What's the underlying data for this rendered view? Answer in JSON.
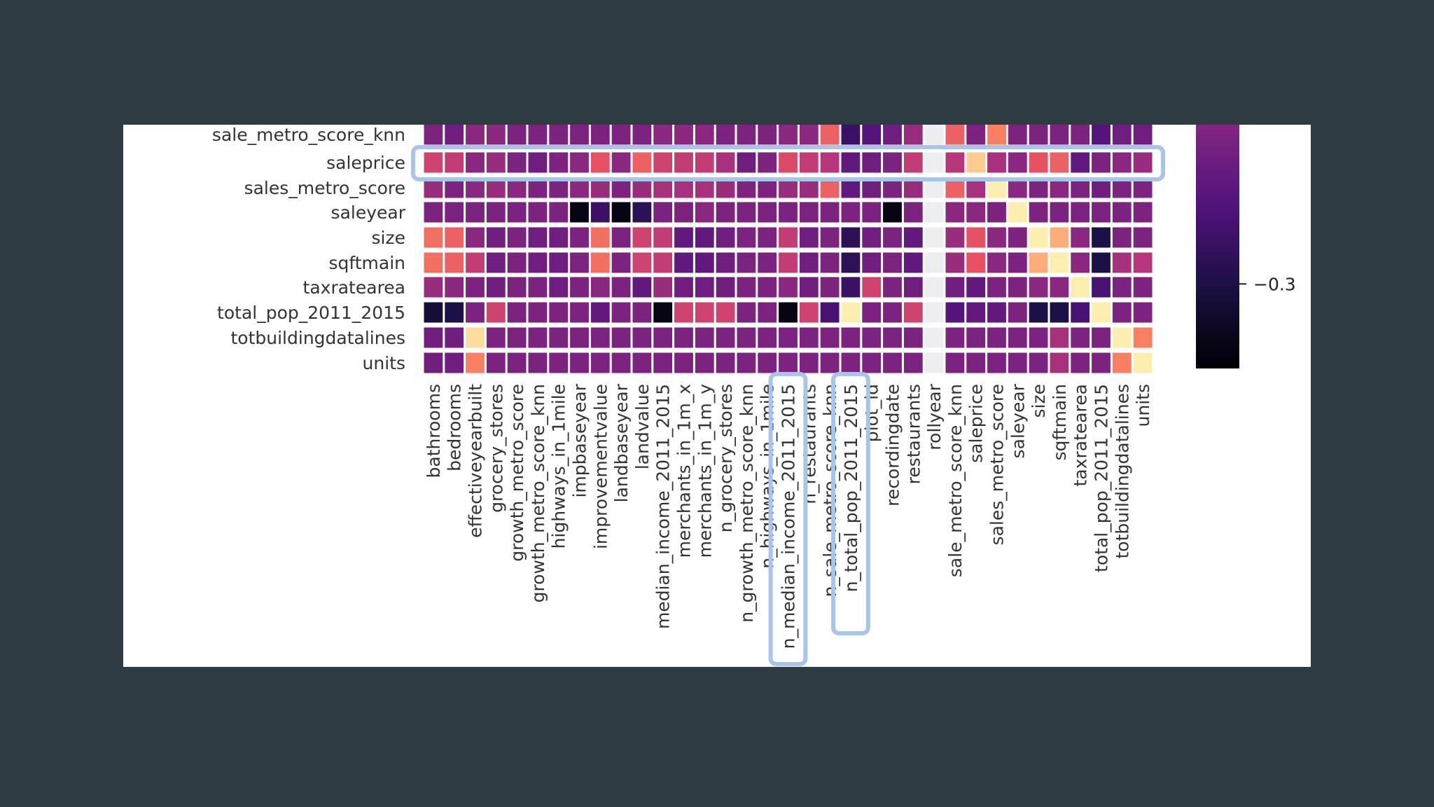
{
  "chart_data": {
    "type": "heatmap",
    "title": "",
    "colormap": "magma",
    "row_labels": [
      "sale_metro_score_knn",
      "saleprice",
      "sales_metro_score",
      "saleyear",
      "size",
      "sqftmain",
      "taxratearea",
      "total_pop_2011_2015",
      "totbuildingdatalines",
      "units"
    ],
    "column_labels": [
      "bathrooms",
      "bedrooms",
      "effectiveyearbuilt",
      "grocery_stores",
      "growth_metro_score",
      "growth_metro_score_knn",
      "highways_in_1mile",
      "impbaseyear",
      "improvementvalue",
      "landbaseyear",
      "landvalue",
      "median_income_2011_2015",
      "merchants_in_1m_x",
      "merchants_in_1m_y",
      "n_grocery_stores",
      "n_growth_metro_score_knn",
      "n_highways_in_1mile",
      "n_median_income_2011_2015",
      "n_restaurants",
      "n_sale_metro_score_knn",
      "n_total_pop_2011_2015",
      "plot_id",
      "recordingdate",
      "restaurants",
      "rollyear",
      "sale_metro_score_knn",
      "saleprice",
      "sales_metro_score",
      "saleyear",
      "size",
      "sqftmain",
      "taxratearea",
      "total_pop_2011_2015",
      "totbuildingdatalines",
      "units"
    ],
    "values": [
      [
        0.05,
        0.0,
        0.1,
        0.1,
        0.05,
        0.05,
        0.05,
        0.05,
        0.05,
        0.05,
        0.05,
        0.1,
        0.1,
        0.1,
        0.05,
        0.05,
        0.05,
        0.1,
        0.1,
        0.5,
        -0.2,
        -0.1,
        0.0,
        0.15,
        null,
        0.5,
        0.05,
        0.6,
        0.05,
        0.05,
        0.05,
        0.05,
        -0.1,
        0.0,
        0.0
      ],
      [
        0.35,
        0.3,
        0.1,
        0.15,
        0.05,
        0.0,
        0.05,
        0.1,
        0.45,
        0.1,
        0.5,
        0.35,
        0.3,
        0.3,
        0.2,
        0.0,
        0.05,
        0.4,
        0.3,
        0.25,
        -0.05,
        0.0,
        0.05,
        0.3,
        null,
        0.25,
        0.85,
        0.2,
        0.1,
        0.45,
        0.5,
        -0.05,
        0.05,
        0.1,
        0.15
      ],
      [
        0.15,
        0.05,
        0.1,
        0.15,
        0.1,
        0.05,
        0.05,
        0.1,
        0.15,
        0.05,
        0.15,
        0.2,
        0.2,
        0.2,
        0.15,
        0.05,
        0.05,
        0.15,
        0.15,
        0.5,
        -0.05,
        0.0,
        0.05,
        0.15,
        null,
        0.5,
        0.2,
        0.95,
        0.1,
        0.05,
        0.1,
        0.05,
        0.0,
        0.05,
        0.05
      ],
      [
        0.05,
        0.05,
        0.05,
        0.05,
        0.05,
        0.05,
        0.05,
        -0.45,
        -0.2,
        -0.45,
        -0.25,
        0.05,
        0.05,
        0.1,
        0.05,
        0.05,
        0.05,
        0.05,
        0.05,
        0.05,
        0.05,
        0.05,
        -0.45,
        0.05,
        null,
        0.1,
        0.1,
        0.05,
        0.95,
        0.05,
        0.05,
        0.05,
        0.05,
        0.05,
        0.05
      ],
      [
        0.55,
        0.5,
        0.1,
        0.0,
        0.05,
        0.0,
        0.0,
        0.05,
        0.55,
        0.05,
        0.35,
        0.3,
        -0.05,
        -0.05,
        0.0,
        0.05,
        0.05,
        0.3,
        0.0,
        0.05,
        -0.25,
        0.0,
        0.05,
        -0.05,
        null,
        0.15,
        0.45,
        0.1,
        0.05,
        0.95,
        0.75,
        0.1,
        -0.3,
        0.05,
        0.05
      ],
      [
        0.55,
        0.5,
        0.3,
        0.0,
        0.05,
        0.0,
        0.0,
        0.05,
        0.55,
        0.05,
        0.35,
        0.3,
        -0.05,
        -0.05,
        0.0,
        0.05,
        0.05,
        0.3,
        0.0,
        0.05,
        -0.25,
        0.0,
        0.05,
        -0.05,
        null,
        0.15,
        0.45,
        0.1,
        0.05,
        0.75,
        0.95,
        0.1,
        -0.3,
        0.2,
        0.25
      ],
      [
        0.15,
        0.1,
        0.05,
        0.0,
        0.05,
        0.05,
        0.0,
        0.05,
        0.1,
        0.05,
        -0.05,
        0.15,
        0.0,
        0.0,
        0.0,
        0.05,
        0.05,
        0.1,
        0.0,
        0.05,
        -0.2,
        0.35,
        0.05,
        0.0,
        null,
        0.0,
        -0.05,
        0.05,
        0.05,
        0.1,
        0.1,
        0.95,
        -0.15,
        0.05,
        0.05
      ],
      [
        -0.35,
        -0.3,
        0.05,
        0.35,
        0.05,
        0.05,
        0.05,
        0.05,
        -0.05,
        0.05,
        0.05,
        -0.45,
        0.35,
        0.35,
        0.35,
        0.05,
        0.05,
        -0.45,
        0.35,
        -0.15,
        0.95,
        0.05,
        0.05,
        0.35,
        null,
        -0.1,
        -0.05,
        -0.05,
        0.05,
        -0.3,
        -0.3,
        -0.15,
        0.95,
        0.05,
        0.05
      ],
      [
        0.0,
        0.0,
        0.9,
        0.05,
        0.05,
        0.05,
        0.05,
        0.05,
        0.05,
        0.05,
        0.05,
        0.05,
        0.05,
        0.05,
        0.05,
        0.05,
        0.05,
        0.05,
        0.05,
        0.05,
        0.05,
        0.05,
        0.05,
        0.05,
        null,
        0.05,
        0.05,
        0.05,
        0.05,
        0.05,
        0.2,
        0.05,
        0.05,
        0.95,
        0.6
      ],
      [
        0.0,
        0.0,
        0.6,
        0.05,
        0.05,
        0.05,
        0.05,
        0.05,
        0.05,
        0.05,
        0.05,
        0.05,
        0.05,
        0.05,
        0.05,
        0.05,
        0.05,
        0.05,
        0.05,
        0.05,
        0.05,
        0.05,
        0.05,
        0.05,
        null,
        0.05,
        0.05,
        0.05,
        0.05,
        0.05,
        0.2,
        0.05,
        0.05,
        0.6,
        0.95
      ]
    ],
    "colorbar": {
      "tick_labels": [
        "−0.3"
      ],
      "tick_values": [
        -0.3
      ],
      "range": [
        -0.5,
        1.0
      ]
    },
    "highlighted_row": "saleprice",
    "highlighted_columns": [
      "n_median_income_2011_2015",
      "n_total_pop_2011_2015"
    ],
    "highlight_color": "#a9c4ea",
    "background_color": "#2d3a40",
    "panel_color": "#ffffff",
    "nan_color": "#eceef1"
  }
}
